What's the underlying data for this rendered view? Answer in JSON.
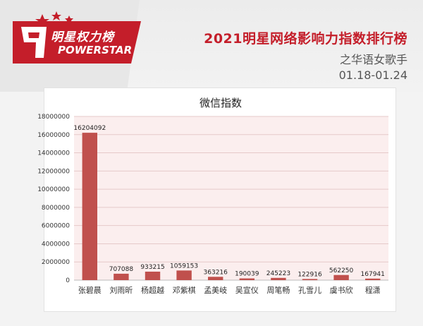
{
  "header": {
    "logo_cn": "明星权力榜",
    "logo_en": "POWERSTAR",
    "title": "2021明星网络影响力指数排行榜",
    "subtitle": "之华语女歌手",
    "date_range": "01.18-01.24"
  },
  "colors": {
    "brand_red": "#c41e2a",
    "bar": "#c0504d",
    "plot_bg": "#fbeeee"
  },
  "chart_data": {
    "type": "bar",
    "title": "微信指数",
    "categories": [
      "张碧晨",
      "刘雨昕",
      "杨超越",
      "邓紫棋",
      "孟美岐",
      "吴宣仪",
      "周笔畅",
      "孔雪儿",
      "虞书欣",
      "程潇"
    ],
    "values": [
      16204092,
      707088,
      933215,
      1059153,
      363216,
      190039,
      245223,
      122916,
      562250,
      167941
    ],
    "ylim": [
      0,
      18000000
    ],
    "yticks": [
      0,
      2000000,
      4000000,
      6000000,
      8000000,
      10000000,
      12000000,
      14000000,
      16000000,
      18000000
    ],
    "grid": true,
    "legend": "none"
  }
}
